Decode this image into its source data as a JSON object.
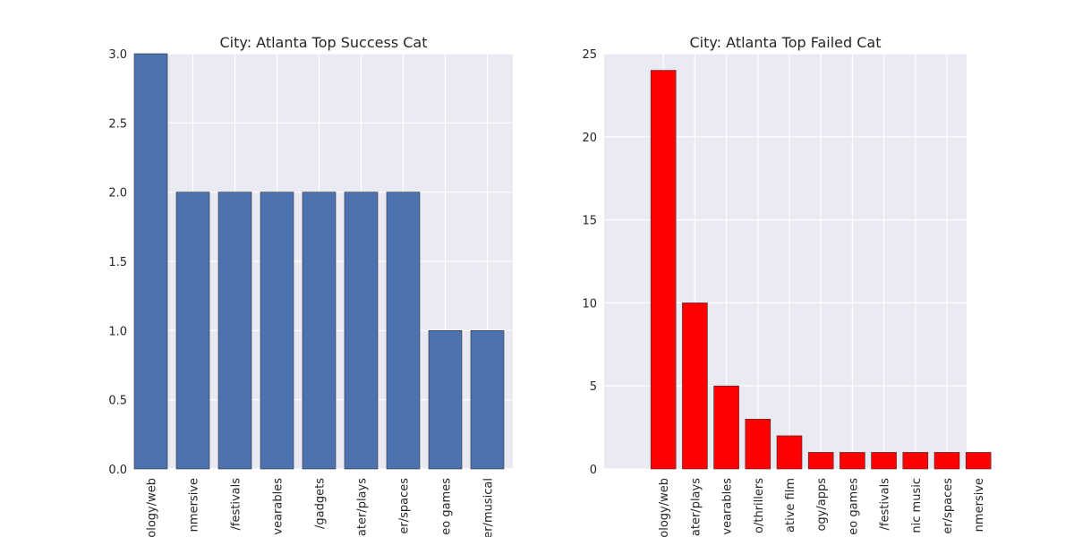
{
  "chart_data": [
    {
      "type": "bar",
      "title": "City: Atlanta Top Success Cat",
      "categories": [
        "ology/web",
        "nmersive",
        "/festivals",
        "vearables",
        "/gadgets",
        "ater/plays",
        "er/spaces",
        "eo games",
        "er/musical"
      ],
      "values": [
        3,
        2,
        2,
        2,
        2,
        2,
        2,
        1,
        1
      ],
      "ylim": [
        0,
        3
      ],
      "yticks": [
        "0.0",
        "0.5",
        "1.0",
        "1.5",
        "2.0",
        "2.5",
        "3.0"
      ],
      "bar_color": "#4c72b0",
      "background": "#eaeaf2",
      "grid": true,
      "xlabel": "",
      "ylabel": ""
    },
    {
      "type": "bar",
      "title": "City: Atlanta Top Failed Cat",
      "categories": [
        "ology/web",
        "ater/plays",
        "vearables",
        "o/thrillers",
        "ative film",
        "ogy/apps",
        "eo games",
        "/festivals",
        "nic music",
        "er/spaces",
        "nmersive"
      ],
      "values": [
        24,
        10,
        5,
        3,
        2,
        1,
        1,
        1,
        1,
        1,
        1
      ],
      "ylim": [
        0,
        25
      ],
      "yticks": [
        "0",
        "5",
        "10",
        "15",
        "20",
        "25"
      ],
      "bar_color": "#ff0000",
      "background": "#eaeaf2",
      "grid": true,
      "xlabel": "",
      "ylabel": ""
    }
  ]
}
